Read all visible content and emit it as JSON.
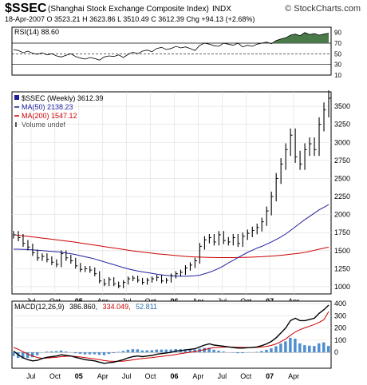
{
  "header": {
    "symbol": "$SSEC",
    "name": "(Shanghai Stock Exchange Composite Index)",
    "exchange": "INDX",
    "credit": "© StockCharts.com",
    "quote_line": "18-Apr-2007  O 3523.21  H 3623.86  L 3510.49  C 3612.39  Chg +94.13 (+2.68%)"
  },
  "rsi_panel": {
    "label": "RSI(14) 88.60",
    "color_line": "#000000",
    "color_fill": "#4a7a4a"
  },
  "price_panel": {
    "legend": {
      "price": "$SSEC (Weekly) 3612.39",
      "ma50": "MA(50) 2138.23",
      "ma200": "MA(200) 1547.12",
      "volume": "Volume undef"
    },
    "ma50_color": "#1f1f9f",
    "ma200_color": "#cc0000"
  },
  "macd_panel": {
    "label": "MACD(12,26,9)",
    "macd": "386.860,",
    "signal": "334.049,",
    "hist": "52.811",
    "macd_color": "#000000",
    "signal_color": "#cc0000",
    "hist_color": "#4f8fcf"
  },
  "chart_data": [
    {
      "type": "line",
      "title": "RSI(14) 88.60",
      "ylim": [
        10,
        100
      ],
      "yticks": [
        10,
        30,
        50,
        70,
        90
      ],
      "reference_lines": [
        70,
        50,
        30
      ],
      "x": [
        0,
        6,
        12,
        18,
        24,
        30,
        36,
        42,
        48,
        54,
        60,
        66,
        72,
        78,
        84,
        90,
        96,
        102,
        108,
        114,
        120,
        126,
        132,
        138,
        144,
        150,
        156,
        162,
        168,
        174,
        180,
        186,
        192,
        198,
        204,
        210,
        216,
        222,
        228,
        234,
        240,
        246,
        252,
        258,
        264,
        270,
        276,
        282,
        288,
        294,
        300,
        306,
        312,
        318,
        324,
        330,
        336,
        342,
        348,
        354,
        360,
        366,
        372,
        378,
        384,
        390,
        396
      ],
      "series": [
        {
          "values": [
            58,
            56,
            52,
            55,
            51,
            49,
            52,
            48,
            50,
            46,
            44,
            47,
            50,
            45,
            42,
            40,
            43,
            41,
            38,
            44,
            46,
            45,
            48,
            43,
            49,
            53,
            50,
            55,
            57,
            54,
            60,
            62,
            58,
            60,
            64,
            61,
            63,
            60,
            56,
            66,
            70,
            68,
            65,
            64,
            70,
            68,
            66,
            70,
            63,
            66,
            64,
            68,
            70,
            72,
            69,
            75,
            78,
            80,
            85,
            87,
            84,
            90,
            86,
            88,
            85,
            87,
            88.6
          ]
        }
      ]
    },
    {
      "type": "line",
      "title": "$SSEC (Weekly) 3612.39",
      "ylim": [
        900,
        3700
      ],
      "yticks": [
        1000,
        1250,
        1500,
        1750,
        2000,
        2250,
        2500,
        2750,
        3000,
        3250,
        3500
      ],
      "xticks": [
        "Jul",
        "Oct",
        "05",
        "Apr",
        "Jul",
        "Oct",
        "06",
        "Apr",
        "Jul",
        "Oct",
        "07",
        "Apr"
      ],
      "x": [
        0,
        6,
        12,
        18,
        24,
        30,
        36,
        42,
        48,
        54,
        60,
        66,
        72,
        78,
        84,
        90,
        96,
        102,
        108,
        114,
        120,
        126,
        132,
        138,
        144,
        150,
        156,
        162,
        168,
        174,
        180,
        186,
        192,
        198,
        204,
        210,
        216,
        222,
        228,
        234,
        240,
        246,
        252,
        258,
        264,
        270,
        276,
        282,
        288,
        294,
        300,
        306,
        312,
        318,
        324,
        330,
        336,
        342,
        348,
        354,
        360,
        366,
        372,
        378,
        384,
        390,
        396
      ],
      "series": [
        {
          "name": "$SSEC",
          "values": [
            1720,
            1680,
            1600,
            1550,
            1470,
            1400,
            1420,
            1380,
            1340,
            1310,
            1460,
            1400,
            1360,
            1290,
            1240,
            1250,
            1230,
            1180,
            1080,
            1040,
            1100,
            1040,
            1010,
            1060,
            1110,
            1120,
            1090,
            1060,
            1090,
            1110,
            1130,
            1080,
            1090,
            1150,
            1180,
            1200,
            1260,
            1300,
            1360,
            1560,
            1650,
            1680,
            1620,
            1720,
            1640,
            1620,
            1680,
            1600,
            1700,
            1740,
            1780,
            1820,
            1900,
            2050,
            2250,
            2500,
            2700,
            2900,
            3100,
            2800,
            2700,
            2900,
            2980,
            2900,
            3250,
            3450,
            3612
          ]
        },
        {
          "name": "MA(50)",
          "values": [
            1520,
            1520,
            1518,
            1515,
            1510,
            1505,
            1500,
            1495,
            1490,
            1485,
            1478,
            1468,
            1458,
            1445,
            1430,
            1415,
            1400,
            1385,
            1365,
            1345,
            1325,
            1305,
            1285,
            1265,
            1248,
            1232,
            1218,
            1205,
            1195,
            1185,
            1175,
            1165,
            1158,
            1152,
            1148,
            1145,
            1145,
            1148,
            1152,
            1160,
            1180,
            1200,
            1225,
            1255,
            1290,
            1330,
            1365,
            1405,
            1440,
            1475,
            1505,
            1535,
            1560,
            1590,
            1620,
            1655,
            1690,
            1730,
            1780,
            1830,
            1880,
            1930,
            1975,
            2020,
            2065,
            2100,
            2138
          ]
        },
        {
          "name": "MA(200)",
          "values": [
            1720,
            1712,
            1705,
            1698,
            1690,
            1682,
            1674,
            1666,
            1658,
            1650,
            1642,
            1634,
            1626,
            1616,
            1606,
            1596,
            1586,
            1576,
            1566,
            1556,
            1546,
            1536,
            1526,
            1516,
            1506,
            1496,
            1488,
            1480,
            1472,
            1464,
            1456,
            1450,
            1444,
            1438,
            1432,
            1426,
            1420,
            1416,
            1412,
            1410,
            1408,
            1406,
            1405,
            1404,
            1404,
            1404,
            1404,
            1405,
            1406,
            1408,
            1410,
            1413,
            1416,
            1420,
            1425,
            1430,
            1436,
            1442,
            1450,
            1458,
            1466,
            1475,
            1490,
            1505,
            1520,
            1535,
            1547
          ]
        }
      ]
    },
    {
      "type": "line",
      "title": "MACD(12,26,9) 386.860, 334.049, 52.811",
      "ylim": [
        -130,
        420
      ],
      "yticks": [
        0,
        100,
        200,
        300,
        400
      ],
      "xticks": [
        "Jul",
        "Oct",
        "05",
        "Apr",
        "Jul",
        "Oct",
        "06",
        "Apr",
        "Jul",
        "Oct",
        "07",
        "Apr"
      ],
      "x": [
        0,
        6,
        12,
        18,
        24,
        30,
        36,
        42,
        48,
        54,
        60,
        66,
        72,
        78,
        84,
        90,
        96,
        102,
        108,
        114,
        120,
        126,
        132,
        138,
        144,
        150,
        156,
        162,
        168,
        174,
        180,
        186,
        192,
        198,
        204,
        210,
        216,
        222,
        228,
        234,
        240,
        246,
        252,
        258,
        264,
        270,
        276,
        282,
        288,
        294,
        300,
        306,
        312,
        318,
        324,
        330,
        336,
        342,
        348,
        354,
        360,
        366,
        372,
        378,
        384,
        390,
        396
      ],
      "series": [
        {
          "name": "MACD",
          "values": [
            10,
            -20,
            -45,
            -60,
            -70,
            -65,
            -50,
            -40,
            -35,
            -30,
            -20,
            -25,
            -30,
            -40,
            -50,
            -60,
            -65,
            -70,
            -80,
            -90,
            -85,
            -80,
            -70,
            -60,
            -45,
            -35,
            -30,
            -35,
            -30,
            -25,
            -15,
            -10,
            -5,
            0,
            10,
            15,
            20,
            25,
            30,
            45,
            60,
            70,
            60,
            55,
            50,
            45,
            40,
            35,
            35,
            38,
            40,
            45,
            55,
            70,
            90,
            120,
            160,
            200,
            260,
            280,
            260,
            260,
            270,
            280,
            320,
            350,
            387
          ]
        },
        {
          "name": "Signal",
          "values": [
            40,
            25,
            5,
            -15,
            -30,
            -42,
            -48,
            -46,
            -43,
            -40,
            -35,
            -32,
            -31,
            -33,
            -38,
            -43,
            -49,
            -54,
            -60,
            -67,
            -72,
            -74,
            -74,
            -72,
            -67,
            -61,
            -55,
            -51,
            -47,
            -43,
            -38,
            -33,
            -28,
            -23,
            -17,
            -11,
            -5,
            1,
            7,
            14,
            23,
            32,
            38,
            41,
            43,
            44,
            43,
            42,
            41,
            40,
            40,
            41,
            44,
            49,
            57,
            70,
            88,
            110,
            140,
            168,
            186,
            201,
            215,
            228,
            246,
            268,
            334
          ]
        },
        {
          "name": "Histogram",
          "values": [
            -30,
            -45,
            -50,
            -45,
            -40,
            -23,
            -2,
            6,
            8,
            10,
            15,
            7,
            1,
            -7,
            -12,
            -17,
            -16,
            -16,
            -20,
            -23,
            -13,
            -6,
            4,
            12,
            22,
            26,
            25,
            16,
            17,
            18,
            23,
            23,
            23,
            23,
            27,
            26,
            25,
            24,
            23,
            31,
            37,
            38,
            22,
            14,
            7,
            1,
            -3,
            -7,
            -6,
            -2,
            0,
            4,
            11,
            21,
            33,
            50,
            72,
            90,
            120,
            112,
            74,
            59,
            55,
            52,
            74,
            82,
            53
          ]
        }
      ]
    }
  ]
}
